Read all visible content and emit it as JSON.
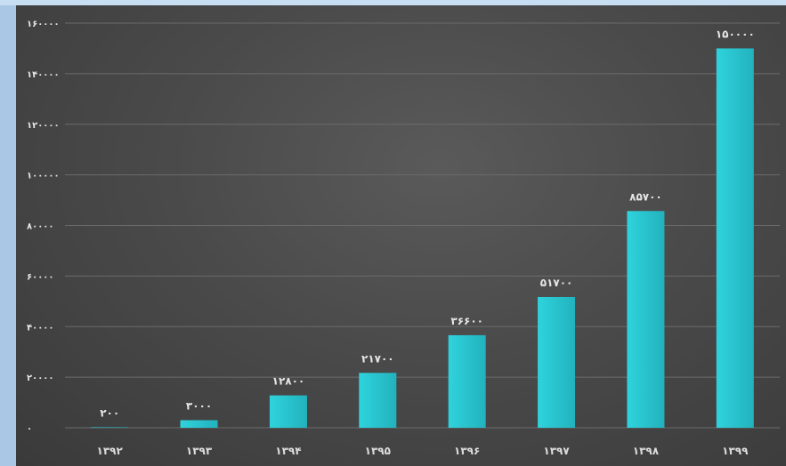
{
  "colors": {
    "bar": "#2fd3dd",
    "bar_dark": "#22b2bd",
    "panel": "#474747",
    "frame": "#b9d4ee",
    "text": "#e6e6e6"
  },
  "chart_data": {
    "type": "bar",
    "title": "",
    "xlabel": "",
    "ylabel": "",
    "ylim": [
      0,
      160000
    ],
    "grid": true,
    "y_ticks": [
      0,
      20000,
      40000,
      60000,
      80000,
      100000,
      120000,
      140000,
      160000
    ],
    "y_tick_labels": [
      "۰",
      "۲۰۰۰۰",
      "۴۰۰۰۰",
      "۶۰۰۰۰",
      "۸۰۰۰۰",
      "۱۰۰۰۰۰",
      "۱۲۰۰۰۰",
      "۱۴۰۰۰۰",
      "۱۶۰۰۰۰"
    ],
    "categories": [
      "۱۳۹۲",
      "۱۳۹۳",
      "۱۳۹۴",
      "۱۳۹۵",
      "۱۳۹۶",
      "۱۳۹۷",
      "۱۳۹۸",
      "۱۳۹۹"
    ],
    "values": [
      200,
      3000,
      12800,
      21700,
      36600,
      51700,
      85700,
      150000
    ],
    "value_labels": [
      "۲۰۰",
      "۳۰۰۰",
      "۱۲۸۰۰",
      "۲۱۷۰۰",
      "۳۶۶۰۰",
      "۵۱۷۰۰",
      "۸۵۷۰۰",
      "۱۵۰۰۰۰"
    ]
  }
}
